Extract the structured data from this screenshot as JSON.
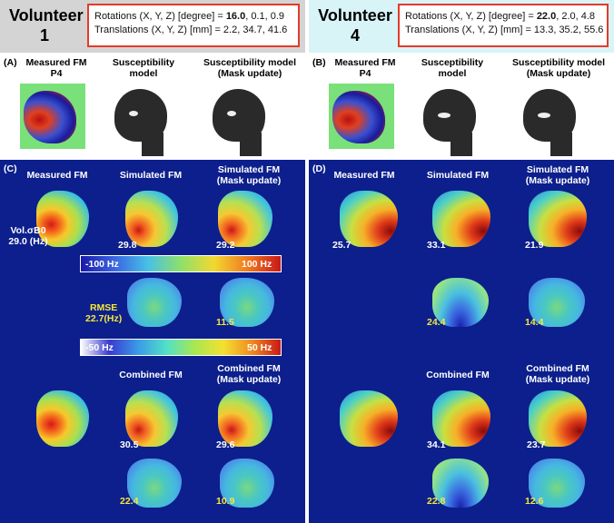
{
  "volunteer1": {
    "title_line1": "Volunteer",
    "title_line2": "1",
    "rotations_prefix": "Rotations (X, Y, Z) [degree] = ",
    "rotations_bold": "16.0",
    "rotations_rest": ", 0.1, 0.9",
    "translations": "Translations (X, Y, Z) [mm] = 2.2, 34.7, 41.6"
  },
  "volunteer4": {
    "title_line1": "Volunteer",
    "title_line2": "4",
    "rotations_prefix": "Rotations (X, Y, Z) [degree] = ",
    "rotations_bold": "22.0",
    "rotations_rest": ", 2.0, 4.8",
    "translations": "Translations (X, Y, Z) [mm] = 13.3, 35.2, 55.6"
  },
  "section_a": {
    "label": "(A)",
    "col1_l1": "Measured FM",
    "col1_l2": "P4",
    "col2_l1": "Susceptibility",
    "col2_l2": "model",
    "col3_l1": "Susceptibility model",
    "col3_l2": "(Mask update)"
  },
  "section_b": {
    "label": "(B)",
    "col1_l1": "Measured FM",
    "col1_l2": "P4",
    "col2_l1": "Susceptibility",
    "col2_l2": "model",
    "col3_l1": "Susceptibility model",
    "col3_l2": "(Mask update)"
  },
  "section_c": {
    "label": "(C)",
    "measured_fm": "Measured FM",
    "simulated_fm": "Simulated FM",
    "simulated_fm_mask_l1": "Simulated FM",
    "simulated_fm_mask_l2": "(Mask update)",
    "vol_label_l1": "Vol.σB0",
    "vol_label_l2": "29.0 (Hz)",
    "val_sim": "29.8",
    "val_sim_mask": "29.2",
    "cbar1_min": "-100 Hz",
    "cbar1_max": "100 Hz",
    "rmse_l1": "RMSE",
    "rmse_l2": "22.7(Hz)",
    "val_rmse_mask": "11.5",
    "cbar2_min": "-50 Hz",
    "cbar2_max": "50 Hz",
    "combined_fm": "Combined FM",
    "combined_fm_mask_l1": "Combined FM",
    "combined_fm_mask_l2": "(Mask update)",
    "val_comb": "30.5",
    "val_comb_mask": "29.6",
    "val_comb_rmse": "22.4",
    "val_comb_rmse_mask": "10.9"
  },
  "section_d": {
    "label": "(D)",
    "measured_fm": "Measured FM",
    "simulated_fm": "Simulated FM",
    "simulated_fm_mask_l1": "Simulated FM",
    "simulated_fm_mask_l2": "(Mask update)",
    "val_meas": "25.7",
    "val_sim": "33.1",
    "val_sim_mask": "21.9",
    "val_rmse": "24.4",
    "val_rmse_mask": "14.4",
    "combined_fm": "Combined FM",
    "combined_fm_mask_l1": "Combined FM",
    "combined_fm_mask_l2": "(Mask update)",
    "val_comb": "34.1",
    "val_comb_mask": "23.7",
    "val_comb_rmse": "22.8",
    "val_comb_rmse_mask": "12.6"
  },
  "colors": {
    "panel_bg": "#0c1f8c",
    "box_border": "#e23b2a",
    "highlight_text": "#f5e83a",
    "header_left_bg": "#d4d4d4",
    "header_right_bg": "#d8f4f6"
  }
}
